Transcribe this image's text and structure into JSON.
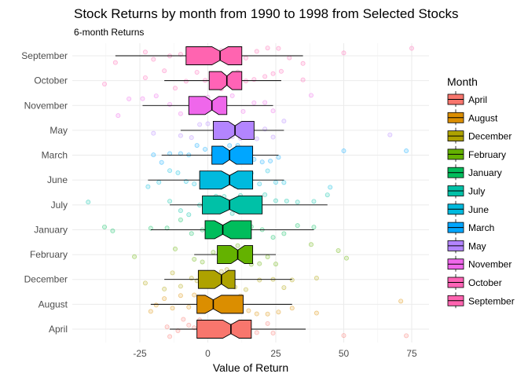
{
  "chart_data": {
    "type": "boxplot",
    "title": "Stock Returns by month from 1990 to 1998 from Selected Stocks",
    "subtitle": "6-month Returns",
    "xlabel": "Value of Return",
    "ylabel": "",
    "xlim": [
      -50,
      80
    ],
    "x_ticks": [
      -25,
      0,
      25,
      50,
      75
    ],
    "grid": true,
    "legend": {
      "title": "Month",
      "position": "right"
    },
    "categories": [
      "April",
      "August",
      "December",
      "February",
      "January",
      "July",
      "June",
      "March",
      "May",
      "November",
      "October",
      "September"
    ],
    "series": [
      {
        "name": "April",
        "color": "#F8766D",
        "whisker_low": -14,
        "q1": -4,
        "median": 8.5,
        "q3": 16,
        "whisker_high": 36,
        "notch": [
          5.5,
          11.5
        ],
        "points": [
          -15,
          -14,
          -11,
          -9,
          -7,
          -5,
          -3,
          -1,
          0,
          2,
          5,
          7,
          9,
          11,
          13,
          15,
          18,
          22,
          24,
          50,
          73
        ]
      },
      {
        "name": "August",
        "color": "#DB8E00",
        "whisker_low": -21,
        "q1": -4,
        "median": 2,
        "q3": 13,
        "whisker_high": 31,
        "notch": [
          -1,
          5
        ],
        "points": [
          -21,
          -19,
          -16,
          -13,
          -10,
          -7,
          -5,
          -2,
          0,
          3,
          6,
          9,
          12,
          15,
          18,
          22,
          26,
          31,
          40,
          71
        ]
      },
      {
        "name": "December",
        "color": "#AEA200",
        "whisker_low": -16,
        "q1": -3.5,
        "median": 5,
        "q3": 10,
        "whisker_high": 31,
        "notch": [
          2.5,
          7.5
        ],
        "points": [
          -23,
          -16,
          -13,
          -10,
          -6,
          -4,
          -1,
          2,
          5,
          7,
          10,
          14,
          19,
          24,
          28,
          31,
          40
        ]
      },
      {
        "name": "February",
        "color": "#64B200",
        "whisker_low": -5,
        "q1": 3.5,
        "median": 11,
        "q3": 16.5,
        "whisker_high": 25,
        "notch": [
          8.5,
          13.5
        ],
        "points": [
          -27,
          -12,
          -5,
          -2,
          2,
          5,
          8,
          11,
          14,
          16,
          19,
          22,
          25,
          38,
          48,
          51
        ]
      },
      {
        "name": "January",
        "color": "#00BD5C",
        "whisker_low": -21,
        "q1": -1,
        "median": 5.5,
        "q3": 16,
        "whisker_high": 39,
        "notch": [
          2.5,
          8.5
        ],
        "points": [
          -38,
          -35,
          -21,
          -15,
          -10,
          -6,
          -2,
          1,
          4,
          7,
          10,
          13,
          16,
          20,
          24,
          28,
          33,
          39
        ]
      },
      {
        "name": "July",
        "color": "#00C1A7",
        "whisker_low": -14,
        "q1": -2,
        "median": 8,
        "q3": 20,
        "whisker_high": 44,
        "notch": [
          4.5,
          11.5
        ],
        "points": [
          -44,
          -14,
          -10,
          -7,
          -3,
          0,
          3,
          6,
          9,
          12,
          15,
          18,
          21,
          25,
          29,
          33,
          39,
          44
        ]
      },
      {
        "name": "June",
        "color": "#00BADE",
        "whisker_low": -22,
        "q1": -3,
        "median": 8,
        "q3": 16.5,
        "whisker_high": 28,
        "notch": [
          5,
          11
        ],
        "points": [
          -22,
          -18,
          -14,
          -11,
          -8,
          -5,
          -2,
          1,
          4,
          7,
          10,
          13,
          16,
          19,
          22,
          25,
          28,
          45
        ]
      },
      {
        "name": "March",
        "color": "#00A6FF",
        "whisker_low": -17,
        "q1": 1.5,
        "median": 8,
        "q3": 16.5,
        "whisker_high": 26,
        "notch": [
          5.5,
          10.5
        ],
        "points": [
          -20,
          -17,
          -14,
          -10,
          -7,
          -4,
          -1,
          2,
          5,
          8,
          11,
          14,
          17,
          20,
          23,
          26,
          50,
          73
        ]
      },
      {
        "name": "May",
        "color": "#B385FF",
        "whisker_low": -10,
        "q1": 2,
        "median": 10,
        "q3": 17,
        "whisker_high": 28,
        "notch": [
          7.5,
          12.5
        ],
        "points": [
          -20,
          -10,
          -6,
          -3,
          0,
          3,
          6,
          9,
          12,
          15,
          18,
          21,
          24,
          28,
          67
        ]
      },
      {
        "name": "November",
        "color": "#EF67EB",
        "whisker_low": -24,
        "q1": -7,
        "median": 1.5,
        "q3": 7,
        "whisker_high": 24,
        "notch": [
          -1,
          4
        ],
        "points": [
          -33,
          -29,
          -24,
          -19,
          -14,
          -10,
          -6,
          -3,
          0,
          3,
          6,
          9,
          13,
          17,
          21,
          24,
          38
        ]
      },
      {
        "name": "October",
        "color": "#FF63B6",
        "whisker_low": -16,
        "q1": 0.5,
        "median": 7,
        "q3": 12.5,
        "whisker_high": 27,
        "notch": [
          5,
          9
        ],
        "points": [
          -38,
          -23,
          -16,
          -12,
          -8,
          -4,
          -1,
          2,
          5,
          8,
          11,
          14,
          17,
          21,
          24,
          27,
          35
        ]
      },
      {
        "name": "September",
        "color": "#FF64B0",
        "whisker_low": -34,
        "q1": -8,
        "median": 4.5,
        "q3": 12.5,
        "whisker_high": 35,
        "notch": [
          1.5,
          7.5
        ],
        "points": [
          -34,
          -23,
          -20,
          -14,
          -10,
          -6,
          -2,
          2,
          5,
          8,
          11,
          14,
          18,
          22,
          26,
          30,
          35,
          50,
          75
        ]
      }
    ]
  }
}
